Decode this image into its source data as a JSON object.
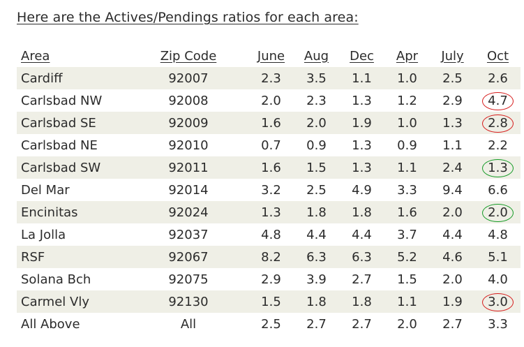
{
  "heading": "Here are the Actives/Pendings ratios for each area:",
  "table": {
    "headers": [
      "Area",
      "Zip Code",
      "June",
      "Aug",
      "Dec",
      "Apr",
      "July",
      "Oct"
    ],
    "rows": [
      {
        "area": "Cardiff",
        "zip": "92007",
        "values": [
          "2.3",
          "3.5",
          "1.1",
          "1.0",
          "2.5",
          "2.6"
        ],
        "oct_circle": ""
      },
      {
        "area": "Carlsbad NW",
        "zip": "92008",
        "values": [
          "2.0",
          "2.3",
          "1.3",
          "1.2",
          "2.9",
          "4.7"
        ],
        "oct_circle": "red"
      },
      {
        "area": "Carlsbad SE",
        "zip": "92009",
        "values": [
          "1.6",
          "2.0",
          "1.9",
          "1.0",
          "1.3",
          "2.8"
        ],
        "oct_circle": "red"
      },
      {
        "area": "Carlsbad NE",
        "zip": "92010",
        "values": [
          "0.7",
          "0.9",
          "1.3",
          "0.9",
          "1.1",
          "2.2"
        ],
        "oct_circle": ""
      },
      {
        "area": "Carlsbad SW",
        "zip": "92011",
        "values": [
          "1.6",
          "1.5",
          "1.3",
          "1.1",
          "2.4",
          "1.3"
        ],
        "oct_circle": "green"
      },
      {
        "area": "Del Mar",
        "zip": "92014",
        "values": [
          "3.2",
          "2.5",
          "4.9",
          "3.3",
          "9.4",
          "6.6"
        ],
        "oct_circle": ""
      },
      {
        "area": "Encinitas",
        "zip": "92024",
        "values": [
          "1.3",
          "1.8",
          "1.8",
          "1.6",
          "2.0",
          "2.0"
        ],
        "oct_circle": "green"
      },
      {
        "area": "La Jolla",
        "zip": "92037",
        "values": [
          "4.8",
          "4.4",
          "4.4",
          "3.7",
          "4.4",
          "4.8"
        ],
        "oct_circle": ""
      },
      {
        "area": "RSF",
        "zip": "92067",
        "values": [
          "8.2",
          "6.3",
          "6.3",
          "5.2",
          "4.6",
          "5.1"
        ],
        "oct_circle": ""
      },
      {
        "area": "Solana Bch",
        "zip": "92075",
        "values": [
          "2.9",
          "3.9",
          "2.7",
          "1.5",
          "2.0",
          "4.0"
        ],
        "oct_circle": ""
      },
      {
        "area": "Carmel Vly",
        "zip": "92130",
        "values": [
          "1.5",
          "1.8",
          "1.8",
          "1.1",
          "1.9",
          "3.0"
        ],
        "oct_circle": "red"
      },
      {
        "area": "All Above",
        "zip": "All",
        "values": [
          "2.5",
          "2.7",
          "2.7",
          "2.0",
          "2.7",
          "3.3"
        ],
        "oct_circle": ""
      }
    ]
  },
  "colors": {
    "row_shade": "#efefe6",
    "circle_red": "#d61a1a",
    "circle_green": "#139a24"
  }
}
